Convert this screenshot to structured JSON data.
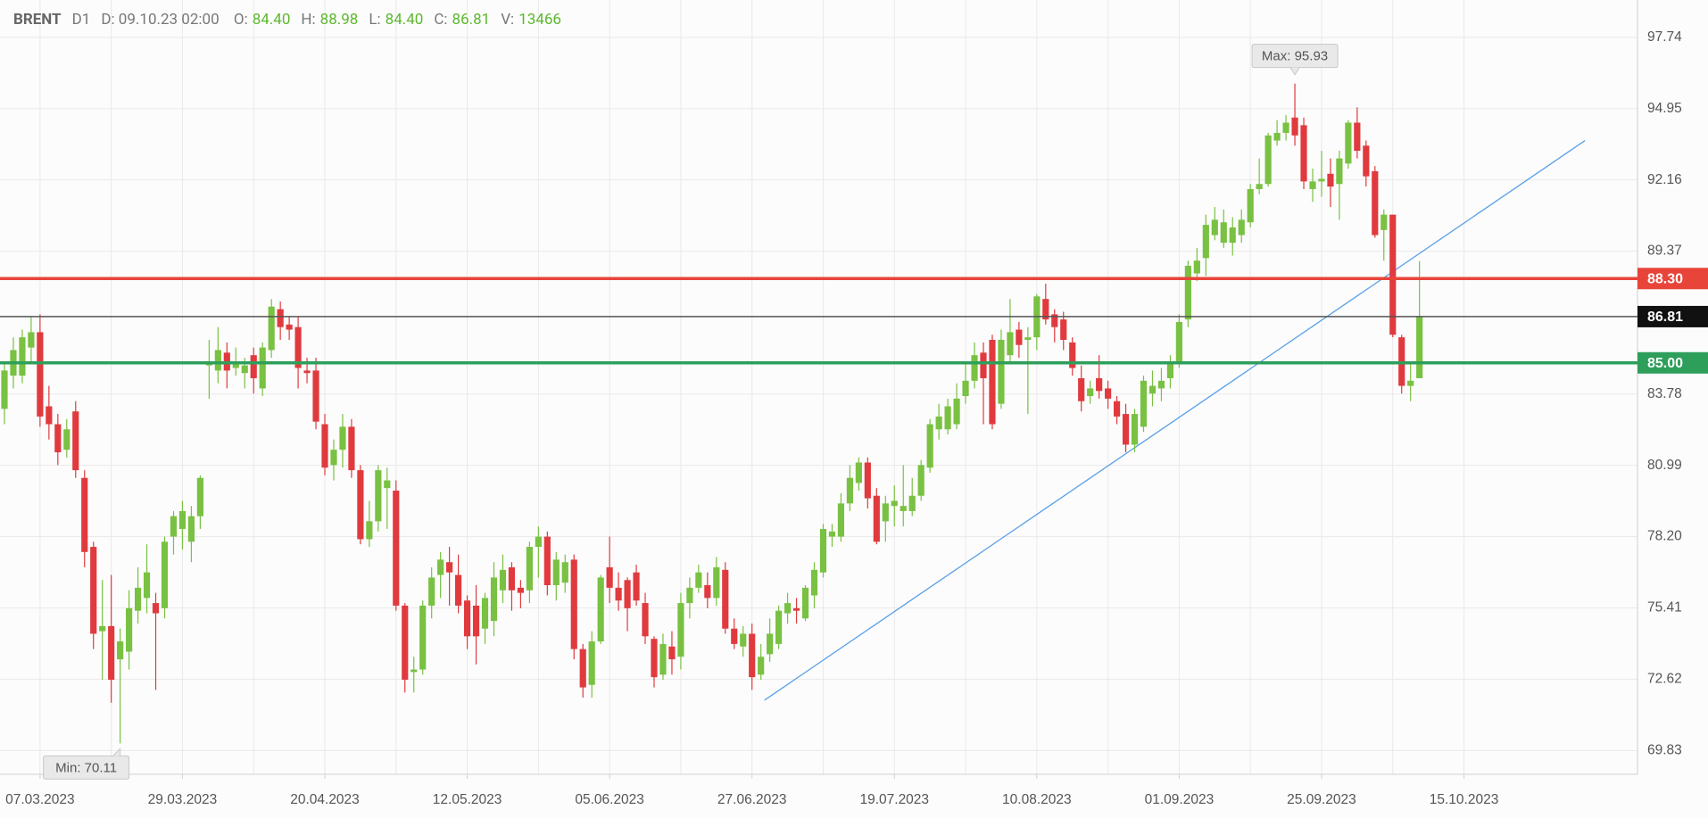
{
  "chart_data": {
    "type": "candlestick",
    "header": {
      "symbol": "BRENT",
      "timeframe": "D1",
      "date": "D: 09.10.23 02:00",
      "ohlcv": [
        {
          "key": "O:",
          "value": 84.4,
          "label": "84.40"
        },
        {
          "key": "H:",
          "value": 88.98
        },
        {
          "key": "L:",
          "value": 84.4,
          "label": "84.40"
        },
        {
          "key": "C:",
          "value": 86.81
        },
        {
          "key": "V:",
          "value": 13466
        }
      ]
    },
    "up_color": "#79c142",
    "down_color": "#e03a3e",
    "candles": [
      [
        83.2,
        85.0,
        82.6,
        84.7
      ],
      [
        84.5,
        86.0,
        84.0,
        85.5
      ],
      [
        84.5,
        86.3,
        84.2,
        86.0
      ],
      [
        85.6,
        86.8,
        85.0,
        86.2
      ],
      [
        86.2,
        86.9,
        82.5,
        82.9
      ],
      [
        83.3,
        84.1,
        82.0,
        82.6
      ],
      [
        82.6,
        83.0,
        81.0,
        81.5
      ],
      [
        81.6,
        82.8,
        81.3,
        82.4
      ],
      [
        83.1,
        83.5,
        80.5,
        80.8
      ],
      [
        80.5,
        80.8,
        77.0,
        77.6
      ],
      [
        77.8,
        78.0,
        73.8,
        74.4
      ],
      [
        74.5,
        76.5,
        72.6,
        74.7
      ],
      [
        74.7,
        76.7,
        71.7,
        72.6
      ],
      [
        73.4,
        74.6,
        70.11,
        74.1
      ],
      [
        73.7,
        76.1,
        73.0,
        75.4
      ],
      [
        75.3,
        77.0,
        74.8,
        76.2
      ],
      [
        75.8,
        77.9,
        75.2,
        76.8
      ],
      [
        75.6,
        76.0,
        72.2,
        75.2
      ],
      [
        75.4,
        78.2,
        75.0,
        78.0
      ],
      [
        78.2,
        79.2,
        77.5,
        79.0
      ],
      [
        78.5,
        79.6,
        77.7,
        79.2
      ],
      [
        78.0,
        79.4,
        77.2,
        79.0
      ],
      [
        79.0,
        80.6,
        78.5,
        80.5
      ],
      [
        84.9,
        85.9,
        83.6,
        85.0
      ],
      [
        84.7,
        86.4,
        84.2,
        85.5
      ],
      [
        85.4,
        85.8,
        84.0,
        84.7
      ],
      [
        84.8,
        85.6,
        84.5,
        85.0
      ],
      [
        84.6,
        85.2,
        84.0,
        84.9
      ],
      [
        85.3,
        85.6,
        83.8,
        84.4
      ],
      [
        84.0,
        85.8,
        83.7,
        85.6
      ],
      [
        85.5,
        87.5,
        85.2,
        87.2
      ],
      [
        87.1,
        87.4,
        85.9,
        86.4
      ],
      [
        86.5,
        86.8,
        85.9,
        86.3
      ],
      [
        86.4,
        86.8,
        84.0,
        84.8
      ],
      [
        84.7,
        85.2,
        84.2,
        84.6
      ],
      [
        84.7,
        85.2,
        82.4,
        82.7
      ],
      [
        82.6,
        83.0,
        80.6,
        80.9
      ],
      [
        81.0,
        82.0,
        80.4,
        81.6
      ],
      [
        81.6,
        83.0,
        80.9,
        82.5
      ],
      [
        82.5,
        82.8,
        80.5,
        80.8
      ],
      [
        80.8,
        81.0,
        77.9,
        78.1
      ],
      [
        78.1,
        79.6,
        77.8,
        78.8
      ],
      [
        78.8,
        81.0,
        78.4,
        80.8
      ],
      [
        80.1,
        80.9,
        78.5,
        80.4
      ],
      [
        80.0,
        80.4,
        75.3,
        75.5
      ],
      [
        75.5,
        75.6,
        72.1,
        72.6
      ],
      [
        72.9,
        73.5,
        72.1,
        73.0
      ],
      [
        73.0,
        75.7,
        72.8,
        75.5
      ],
      [
        75.5,
        77.0,
        75.0,
        76.6
      ],
      [
        76.7,
        77.6,
        75.8,
        77.3
      ],
      [
        77.2,
        77.8,
        75.5,
        76.8
      ],
      [
        76.7,
        77.5,
        75.2,
        75.5
      ],
      [
        75.7,
        75.9,
        73.8,
        74.3
      ],
      [
        75.5,
        76.3,
        73.2,
        74.3
      ],
      [
        74.6,
        76.0,
        74.0,
        75.8
      ],
      [
        74.9,
        77.2,
        74.3,
        76.6
      ],
      [
        76.1,
        77.5,
        75.6,
        76.9
      ],
      [
        77.0,
        77.2,
        75.3,
        76.1
      ],
      [
        76.2,
        76.5,
        75.4,
        76.0
      ],
      [
        76.1,
        78.0,
        75.6,
        77.8
      ],
      [
        77.8,
        78.6,
        76.6,
        78.2
      ],
      [
        78.2,
        78.4,
        75.9,
        76.3
      ],
      [
        76.3,
        77.6,
        75.7,
        77.3
      ],
      [
        76.4,
        77.5,
        76.0,
        77.2
      ],
      [
        77.3,
        77.5,
        73.4,
        73.8
      ],
      [
        73.8,
        74.0,
        71.9,
        72.3
      ],
      [
        72.4,
        74.5,
        71.9,
        74.1
      ],
      [
        74.1,
        76.7,
        74.0,
        76.6
      ],
      [
        77.0,
        78.2,
        75.6,
        76.2
      ],
      [
        76.2,
        76.8,
        75.3,
        75.7
      ],
      [
        76.5,
        76.6,
        74.5,
        75.4
      ],
      [
        76.8,
        77.1,
        75.5,
        75.7
      ],
      [
        75.6,
        76.0,
        74.0,
        74.3
      ],
      [
        74.2,
        74.3,
        72.3,
        72.7
      ],
      [
        72.8,
        74.4,
        72.6,
        74.0
      ],
      [
        73.9,
        74.5,
        72.8,
        73.4
      ],
      [
        73.5,
        76.0,
        73.0,
        75.6
      ],
      [
        75.6,
        76.6,
        75.0,
        76.2
      ],
      [
        76.2,
        77.1,
        76.0,
        76.8
      ],
      [
        76.3,
        76.8,
        75.4,
        75.8
      ],
      [
        75.8,
        77.4,
        75.5,
        77.0
      ],
      [
        76.9,
        77.2,
        74.4,
        74.6
      ],
      [
        74.6,
        75.0,
        73.8,
        74.0
      ],
      [
        73.9,
        74.7,
        73.5,
        74.4
      ],
      [
        74.4,
        74.8,
        72.2,
        72.7
      ],
      [
        72.8,
        74.0,
        72.6,
        73.5
      ],
      [
        73.6,
        75.0,
        73.3,
        74.4
      ],
      [
        74.0,
        75.5,
        73.8,
        75.3
      ],
      [
        75.2,
        76.0,
        74.8,
        75.6
      ],
      [
        75.4,
        75.8,
        74.8,
        75.3
      ],
      [
        75.0,
        76.3,
        74.9,
        76.2
      ],
      [
        75.9,
        77.2,
        75.4,
        76.9
      ],
      [
        76.8,
        78.7,
        76.6,
        78.5
      ],
      [
        78.2,
        78.7,
        77.8,
        78.4
      ],
      [
        78.2,
        79.9,
        78.0,
        79.5
      ],
      [
        79.5,
        81.0,
        79.2,
        80.5
      ],
      [
        80.3,
        81.3,
        80.0,
        81.1
      ],
      [
        81.1,
        81.3,
        79.3,
        79.7
      ],
      [
        79.8,
        80.1,
        77.9,
        78.0
      ],
      [
        78.8,
        79.8,
        78.0,
        79.5
      ],
      [
        79.4,
        80.2,
        78.6,
        79.6
      ],
      [
        79.2,
        81.0,
        78.6,
        79.4
      ],
      [
        79.2,
        80.5,
        79.0,
        79.8
      ],
      [
        79.8,
        81.2,
        79.6,
        81.0
      ],
      [
        80.9,
        82.8,
        80.7,
        82.6
      ],
      [
        82.4,
        83.4,
        82.0,
        82.9
      ],
      [
        82.4,
        83.6,
        82.2,
        83.3
      ],
      [
        82.6,
        84.2,
        82.4,
        83.6
      ],
      [
        83.7,
        85.0,
        83.4,
        84.3
      ],
      [
        84.3,
        85.8,
        84.0,
        85.3
      ],
      [
        85.4,
        85.8,
        82.6,
        84.4
      ],
      [
        85.9,
        86.1,
        82.4,
        82.6
      ],
      [
        83.4,
        86.3,
        83.2,
        85.9
      ],
      [
        85.3,
        87.5,
        85.0,
        86.2
      ],
      [
        86.3,
        86.6,
        85.2,
        85.7
      ],
      [
        85.9,
        86.4,
        83.0,
        86.0
      ],
      [
        86.0,
        87.7,
        85.5,
        87.6
      ],
      [
        87.5,
        88.1,
        86.5,
        86.7
      ],
      [
        86.9,
        87.1,
        85.8,
        86.4
      ],
      [
        86.7,
        87.0,
        85.5,
        85.9
      ],
      [
        85.8,
        86.0,
        84.5,
        84.8
      ],
      [
        84.4,
        84.9,
        83.1,
        83.5
      ],
      [
        83.7,
        84.3,
        83.4,
        84.0
      ],
      [
        84.4,
        85.3,
        83.6,
        83.9
      ],
      [
        84.0,
        84.3,
        83.2,
        83.6
      ],
      [
        83.5,
        83.7,
        82.6,
        82.9
      ],
      [
        83.0,
        83.4,
        81.5,
        81.8
      ],
      [
        81.8,
        83.2,
        81.5,
        83.0
      ],
      [
        82.5,
        84.5,
        82.3,
        84.3
      ],
      [
        83.8,
        84.7,
        83.3,
        84.1
      ],
      [
        84.0,
        84.8,
        83.5,
        84.3
      ],
      [
        84.4,
        85.3,
        84.0,
        85.0
      ],
      [
        85.0,
        86.9,
        84.8,
        86.6
      ],
      [
        86.7,
        89.0,
        86.4,
        88.8
      ],
      [
        88.5,
        89.5,
        88.2,
        89.0
      ],
      [
        89.1,
        90.8,
        88.4,
        90.4
      ],
      [
        90.0,
        91.1,
        89.8,
        90.6
      ],
      [
        89.7,
        91.0,
        89.5,
        90.5
      ],
      [
        89.7,
        90.7,
        89.2,
        90.3
      ],
      [
        90.0,
        91.0,
        89.7,
        90.6
      ],
      [
        90.5,
        92.0,
        90.3,
        91.8
      ],
      [
        91.8,
        93.0,
        91.6,
        92.0
      ],
      [
        92.0,
        94.0,
        91.9,
        93.9
      ],
      [
        93.7,
        94.5,
        93.5,
        94.0
      ],
      [
        94.0,
        94.7,
        93.7,
        94.4
      ],
      [
        94.6,
        95.93,
        93.5,
        93.9
      ],
      [
        94.3,
        94.6,
        91.8,
        92.1
      ],
      [
        91.8,
        92.6,
        91.3,
        92.1
      ],
      [
        92.1,
        93.3,
        91.5,
        92.2
      ],
      [
        92.4,
        93.0,
        91.1,
        91.9
      ],
      [
        92.0,
        93.3,
        90.6,
        93.0
      ],
      [
        92.8,
        94.5,
        92.6,
        94.4
      ],
      [
        94.4,
        95.0,
        93.0,
        93.3
      ],
      [
        93.5,
        93.7,
        91.9,
        92.3
      ],
      [
        92.5,
        92.7,
        89.9,
        90.0
      ],
      [
        90.2,
        91.0,
        89.0,
        90.8
      ],
      [
        90.8,
        90.8,
        86.0,
        86.1
      ],
      [
        86.0,
        86.1,
        83.8,
        84.1
      ],
      [
        84.1,
        85.0,
        83.5,
        84.3
      ],
      [
        84.4,
        88.98,
        84.4,
        86.81
      ]
    ],
    "xlim": [
      -0.5,
      183.5
    ],
    "xticks": [
      {
        "value": 4,
        "label": "07.03.2023"
      },
      {
        "value": 20,
        "label": "29.03.2023"
      },
      {
        "value": 36,
        "label": "20.04.2023"
      },
      {
        "value": 52,
        "label": "12.05.2023"
      },
      {
        "value": 68,
        "label": "05.06.2023"
      },
      {
        "value": 84,
        "label": "27.06.2023"
      },
      {
        "value": 100,
        "label": "19.07.2023"
      },
      {
        "value": 116,
        "label": "10.08.2023"
      },
      {
        "value": 132,
        "label": "01.09.2023"
      },
      {
        "value": 148,
        "label": "25.09.2023"
      },
      {
        "value": 164,
        "label": "15.10.2023"
      }
    ],
    "ylim": [
      68.9,
      99.2
    ],
    "yticks": [
      97.74,
      94.95,
      92.16,
      89.37,
      83.78,
      80.99,
      {
        "value": 78.2,
        "label": "78.20"
      },
      75.41,
      72.62,
      69.83
    ],
    "grid": true,
    "levels": [
      {
        "value": 88.3,
        "label": "88.30",
        "color": "#e8443a"
      },
      {
        "value": 85,
        "label": "85.00",
        "color": "#2e9e5b"
      }
    ],
    "close_color": "#555555",
    "trendline": {
      "x": [
        85.4,
        177.6
      ],
      "y": [
        71.8,
        93.7
      ],
      "color": "#5aa0e8"
    },
    "max": {
      "label": "Max: 95.93",
      "value": 95.93
    },
    "min": {
      "label": "Min: 70.11",
      "value": 70.11
    }
  }
}
